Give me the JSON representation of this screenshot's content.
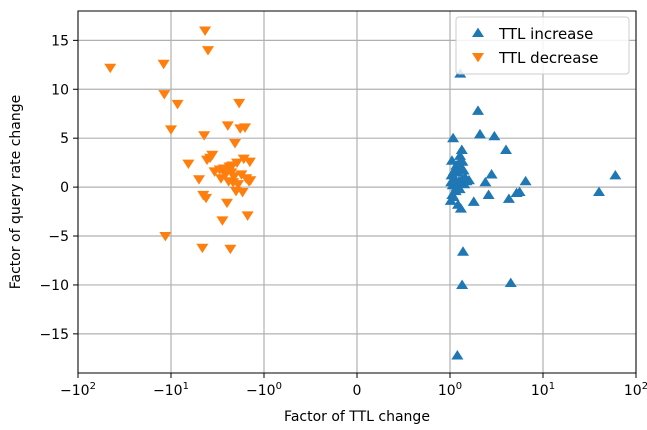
{
  "chart_data": {
    "type": "scatter",
    "xlabel": "Factor of TTL change",
    "ylabel": "Factor of query rate change",
    "x_scale": "symlog",
    "xlim": [
      -100,
      100
    ],
    "ylim": [
      -19,
      18
    ],
    "grid": true,
    "legend_position": "top-right",
    "x_ticks": [
      {
        "value": -100,
        "base": "−10",
        "exp": "2"
      },
      {
        "value": -10,
        "base": "−10",
        "exp": "1"
      },
      {
        "value": -1,
        "base": "−10",
        "exp": "0"
      },
      {
        "value": 0,
        "base": "0",
        "exp": ""
      },
      {
        "value": 1,
        "base": "10",
        "exp": "0"
      },
      {
        "value": 10,
        "base": "10",
        "exp": "1"
      },
      {
        "value": 100,
        "base": "10",
        "exp": "2"
      }
    ],
    "y_ticks": [
      {
        "value": -15,
        "label": "−15"
      },
      {
        "value": -10,
        "label": "−10"
      },
      {
        "value": -5,
        "label": "−5"
      },
      {
        "value": 0,
        "label": "0"
      },
      {
        "value": 5,
        "label": "5"
      },
      {
        "value": 10,
        "label": "10"
      },
      {
        "value": 15,
        "label": "15"
      }
    ],
    "series": [
      {
        "name": "TTL increase",
        "marker": "triangle-up",
        "color": "#1f77b4",
        "points": [
          [
            1.02,
            -1.4
          ],
          [
            1.03,
            0.5
          ],
          [
            1.04,
            1.2
          ],
          [
            1.05,
            2.7
          ],
          [
            1.06,
            -0.8
          ],
          [
            1.07,
            0.2
          ],
          [
            1.08,
            5.0
          ],
          [
            1.09,
            -1.0
          ],
          [
            1.1,
            1.6
          ],
          [
            1.12,
            0.9
          ],
          [
            1.15,
            -0.4
          ],
          [
            1.17,
            2.2
          ],
          [
            1.18,
            0.0
          ],
          [
            1.2,
            -17.2
          ],
          [
            1.21,
            1.5
          ],
          [
            1.22,
            -1.8
          ],
          [
            1.24,
            2.4
          ],
          [
            1.25,
            0.6
          ],
          [
            1.27,
            -0.2
          ],
          [
            1.28,
            3.2
          ],
          [
            1.29,
            11.6
          ],
          [
            1.3,
            1.9
          ],
          [
            1.31,
            -2.2
          ],
          [
            1.33,
            0.7
          ],
          [
            1.34,
            3.8
          ],
          [
            1.35,
            -10.0
          ],
          [
            1.36,
            2.6
          ],
          [
            1.38,
            -6.6
          ],
          [
            1.4,
            1.7
          ],
          [
            1.42,
            0.3
          ],
          [
            1.45,
            1.0
          ],
          [
            1.5,
            0.6
          ],
          [
            1.6,
            0.7
          ],
          [
            1.8,
            -1.5
          ],
          [
            2.0,
            7.8
          ],
          [
            2.1,
            5.4
          ],
          [
            2.4,
            0.5
          ],
          [
            2.6,
            -0.8
          ],
          [
            2.8,
            1.3
          ],
          [
            3.0,
            5.2
          ],
          [
            4.0,
            3.8
          ],
          [
            4.3,
            -1.2
          ],
          [
            4.5,
            -9.8
          ],
          [
            5.2,
            -0.6
          ],
          [
            5.6,
            -0.5
          ],
          [
            6.5,
            0.6
          ],
          [
            40.0,
            -0.5
          ],
          [
            60.0,
            1.2
          ]
        ]
      },
      {
        "name": "TTL decrease",
        "marker": "triangle-down",
        "color": "#ff7f0e",
        "points": [
          [
            -45.0,
            12.2
          ],
          [
            -12.0,
            12.6
          ],
          [
            -11.8,
            9.5
          ],
          [
            -11.5,
            -5.0
          ],
          [
            -10.0,
            5.9
          ],
          [
            -8.5,
            8.5
          ],
          [
            -6.5,
            2.4
          ],
          [
            -5.0,
            0.8
          ],
          [
            -4.6,
            -6.2
          ],
          [
            -4.5,
            -0.8
          ],
          [
            -4.4,
            5.3
          ],
          [
            -4.3,
            16.0
          ],
          [
            -4.2,
            -1.1
          ],
          [
            -4.1,
            2.8
          ],
          [
            -4.0,
            14.0
          ],
          [
            -3.8,
            3.0
          ],
          [
            -3.6,
            3.3
          ],
          [
            -3.4,
            1.6
          ],
          [
            -3.0,
            1.8
          ],
          [
            -2.9,
            0.9
          ],
          [
            -2.8,
            -3.4
          ],
          [
            -2.7,
            1.9
          ],
          [
            -2.6,
            1.3
          ],
          [
            -2.5,
            -1.6
          ],
          [
            -2.45,
            6.3
          ],
          [
            -2.4,
            0.6
          ],
          [
            -2.35,
            2.1
          ],
          [
            -2.3,
            -6.3
          ],
          [
            -2.25,
            1.5
          ],
          [
            -2.2,
            2.2
          ],
          [
            -2.15,
            0.5
          ],
          [
            -2.1,
            1.1
          ],
          [
            -2.05,
            4.5
          ],
          [
            -2.0,
            -0.4
          ],
          [
            -1.95,
            2.5
          ],
          [
            -1.9,
            0.3
          ],
          [
            -1.85,
            8.6
          ],
          [
            -1.8,
            6.0
          ],
          [
            -1.75,
            1.3
          ],
          [
            -1.7,
            -0.5
          ],
          [
            -1.65,
            2.9
          ],
          [
            -1.6,
            6.1
          ],
          [
            -1.55,
            0.9
          ],
          [
            -1.5,
            -2.9
          ],
          [
            -1.45,
            0.6
          ],
          [
            -1.42,
            2.6
          ],
          [
            -1.4,
            0.7
          ]
        ]
      }
    ]
  }
}
